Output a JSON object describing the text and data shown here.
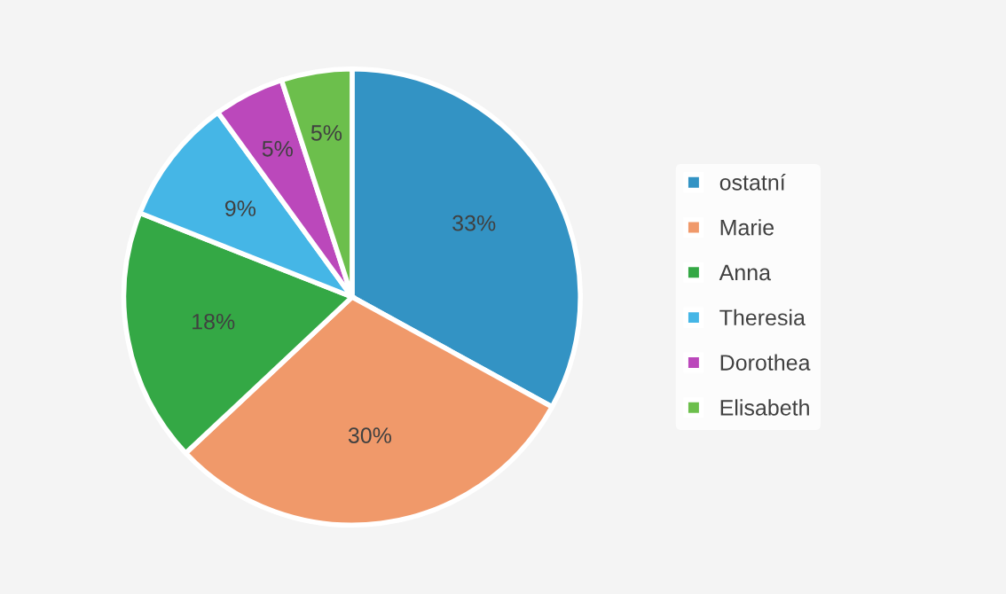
{
  "chart_data": {
    "type": "pie",
    "categories": [
      "ostatní",
      "Marie",
      "Anna",
      "Theresia",
      "Dorothea",
      "Elisabeth"
    ],
    "values": [
      33,
      30,
      18,
      9,
      5,
      5
    ],
    "colors": [
      "#3393c4",
      "#f0996a",
      "#34a845",
      "#45b6e6",
      "#bb48bb",
      "#6cbf4c"
    ],
    "value_labels": [
      "33%",
      "30%",
      "18%",
      "9%",
      "5%",
      "5%"
    ],
    "legend": "right"
  }
}
